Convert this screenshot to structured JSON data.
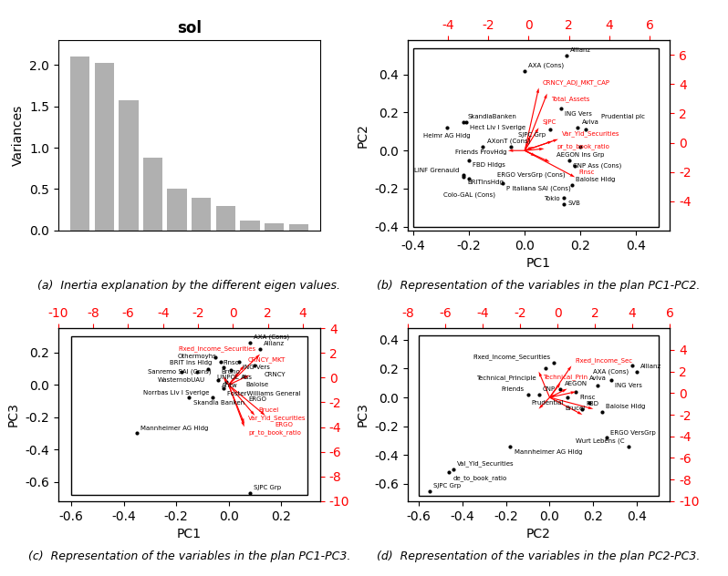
{
  "chart_data": [
    {
      "type": "bar",
      "title": "sol",
      "ylabel": "Variances",
      "caption": "(a)  Inertia explanation by the different eigen values.",
      "values": [
        2.1,
        2.03,
        1.58,
        0.88,
        0.5,
        0.4,
        0.3,
        0.12,
        0.09,
        0.07
      ],
      "color": "#b0b0b0",
      "ylim": [
        0,
        2.3
      ],
      "yticks": [
        0.0,
        0.5,
        1.0,
        1.5,
        2.0
      ],
      "tick_labels": "y"
    },
    {
      "type": "biplot",
      "xlabel": "PC1",
      "ylabel": "PC2",
      "caption": "(b)  Representation of the variables in the plan PC1-PC2.",
      "points": {
        "color": "black",
        "x": [
          0.15,
          0.0,
          0.13,
          -0.22,
          -0.21,
          -0.28,
          0.19,
          0.22,
          0.09,
          0.2,
          -0.15,
          -0.05,
          -0.2,
          0.16,
          0.18,
          -0.22,
          -0.22,
          -0.2,
          -0.08,
          0.17,
          0.14,
          0.14
        ],
        "y": [
          0.5,
          0.42,
          0.22,
          0.15,
          0.15,
          0.12,
          0.12,
          0.11,
          0.11,
          0.02,
          0.02,
          0.02,
          -0.05,
          -0.05,
          -0.08,
          -0.13,
          -0.14,
          -0.15,
          -0.17,
          -0.18,
          -0.25,
          -0.28
        ],
        "labels": [
          "Allianz",
          "AXA (Cons)",
          "ING Vers",
          "SkandiaBanken",
          "Hect Liv I Sverige",
          "Heimr AG Hidg",
          "Aviva",
          "Prudential plc",
          "SJPC Grp",
          "AEGON Ins Grp",
          "AXonT (Cons)",
          "Friends ProvHdg",
          "FBD Hldgs",
          "CNP Ass (Cons)",
          "ERGO VersGrp (Cons)",
          "LINF Grenauld",
          "BRITInsHdg",
          "Colo-GAL (Cons)",
          "P Italiana SAI (Cons)",
          "Baloise Hldg",
          "SVB",
          "Tokio"
        ]
      },
      "vectors": {
        "color": "red",
        "x": [
          0.05,
          0.08,
          0.12,
          0.1,
          0.05,
          0.18,
          0.03,
          -0.06,
          0.02,
          0.07,
          0.04,
          0.09
        ],
        "y": [
          0.33,
          0.3,
          0.06,
          0.05,
          0.12,
          -0.14,
          0.02,
          0.0,
          0.08,
          0.01,
          -0.03,
          -0.06
        ],
        "labels": [
          "CRNCY_ADJ_MKT_CAP",
          "Total_Assets",
          "Var_Yld_Securities",
          "pr_to_book_ratio",
          "SJPC",
          "Finsc",
          null,
          null,
          null,
          null,
          null,
          null
        ]
      },
      "box": {
        "color": "black",
        "x": [
          -0.4,
          0.48
        ],
        "y": [
          -0.4,
          0.54
        ]
      },
      "xlim": [
        -0.42,
        0.52
      ],
      "ylim": [
        -0.42,
        0.58
      ],
      "xticks": [
        -0.4,
        -0.2,
        0.0,
        0.2,
        0.4
      ],
      "yticks": [
        -0.4,
        -0.2,
        0.0,
        0.2,
        0.4
      ],
      "x2lim": [
        -6,
        7
      ],
      "y2lim": [
        -6,
        7
      ],
      "x2ticks": [
        -4,
        -2,
        0,
        2,
        4,
        6
      ],
      "y2ticks": [
        -4,
        -2,
        0,
        2,
        4,
        6
      ]
    },
    {
      "type": "biplot",
      "xlabel": "PC1",
      "ylabel": "PC3",
      "caption": "(c)  Representation of the variables in the plan PC1-PC3.",
      "points": {
        "color": "black",
        "x": [
          0.08,
          0.12,
          -0.05,
          0.04,
          -0.03,
          -0.08,
          -0.18,
          -0.12,
          -0.04,
          -0.02,
          -0.15,
          -0.06,
          -0.35,
          0.08,
          0.1,
          -0.02,
          0.01,
          0.06,
          -0.01
        ],
        "y": [
          0.26,
          0.22,
          0.17,
          0.14,
          0.14,
          0.1,
          0.08,
          0.08,
          0.03,
          -0.02,
          -0.08,
          -0.08,
          -0.3,
          -0.67,
          0.12,
          0.11,
          0.09,
          0.05,
          0.02
        ],
        "labels": [
          "AXA (Cons)",
          "Allianz",
          "BRIT Ins Hldg",
          "ING Vers",
          "Sanremo SAI (Cons)",
          "UNPOL Ass",
          "WasternobUAU",
          "Othermoyhs",
          "Antw",
          "FosterWilliams General",
          "Skandia Banken",
          "Norrbas Liv I Sverige",
          "Mannheimer AG Hldg",
          "SJPC Grp",
          "CRNCY",
          "Baloise",
          "Finsc",
          "Bruno",
          "ERGO"
        ]
      },
      "vectors": {
        "color": "red",
        "x": [
          0.12,
          0.06,
          0.06,
          0.06,
          0.1,
          0.14,
          0.04,
          -0.02,
          0.08,
          0.02
        ],
        "y": [
          0.19,
          0.12,
          -0.24,
          -0.26,
          -0.19,
          -0.19,
          0.08,
          0.05,
          0.06,
          0.01
        ],
        "labels": [
          "Fixed_Income_Securities",
          "CRNCY_MKT",
          "Var_Yld_Securities",
          "pr_to_book_ratio",
          "Brucel",
          "ERGO",
          null,
          null,
          null,
          null
        ]
      },
      "box": {
        "color": "black",
        "x": [
          -0.6,
          0.3
        ],
        "y": [
          -0.68,
          0.3
        ]
      },
      "xlim": [
        -0.65,
        0.35
      ],
      "ylim": [
        -0.72,
        0.35
      ],
      "xticks": [
        -0.6,
        -0.4,
        -0.2,
        0.0,
        0.2
      ],
      "yticks": [
        -0.6,
        -0.4,
        -0.2,
        0.0,
        0.2
      ],
      "x2lim": [
        -10,
        5
      ],
      "y2lim": [
        -10,
        4
      ],
      "x2ticks": [
        -10,
        -8,
        -6,
        -4,
        -2,
        0,
        2,
        4
      ],
      "y2ticks": [
        -10,
        -8,
        -6,
        -4,
        -2,
        0,
        2,
        4
      ]
    },
    {
      "type": "biplot",
      "xlabel": "PC2",
      "ylabel": "PC3",
      "caption": "(d)  Representation of the variables in the plan PC2-PC3.",
      "points": {
        "color": "black",
        "x": [
          0.38,
          0.4,
          0.28,
          0.02,
          0.24,
          0.26,
          0.36,
          -0.18,
          -0.55,
          -0.44,
          -0.46,
          -0.02,
          0.05,
          0.12,
          0.18,
          -0.05,
          0.08,
          -0.1,
          0.22,
          0.15
        ],
        "y": [
          0.22,
          0.18,
          0.12,
          0.24,
          -0.1,
          -0.28,
          -0.34,
          -0.34,
          -0.65,
          -0.5,
          -0.52,
          0.2,
          0.06,
          0.04,
          -0.04,
          0.02,
          0.0,
          0.02,
          0.08,
          -0.08
        ],
        "labels": [
          "AXA (Cons)",
          "Allianz",
          "ING Vers",
          "Fixed_Income_Securities",
          "Baloise Hldg",
          "ERGO VersGrp",
          "Wurt Lebens (C",
          "Mannheimer AG Hldg",
          "SJPC Grp",
          "Val_Yld_Securities",
          "de_to_book_ratio",
          "Technical_Principle",
          "AEGON",
          "Finsc",
          "Brucel",
          "CNP",
          "Prudential",
          "Friends",
          "Aviva",
          "FBD"
        ]
      },
      "vectors": {
        "color": "red",
        "x": [
          0.1,
          -0.05,
          0.08,
          0.12,
          0.03,
          0.15,
          0.2,
          0.05,
          -0.05
        ],
        "y": [
          0.22,
          0.18,
          0.06,
          0.04,
          0.02,
          -0.12,
          -0.08,
          0.1,
          -0.08
        ],
        "labels": [
          "Fixed_Income_Sec",
          "Technical_Prin",
          null,
          null,
          null,
          null,
          null,
          null,
          null
        ]
      },
      "box": {
        "color": "black",
        "x": [
          -0.6,
          0.5
        ],
        "y": [
          -0.68,
          0.43
        ]
      },
      "xlim": [
        -0.65,
        0.55
      ],
      "ylim": [
        -0.72,
        0.48
      ],
      "xticks": [
        -0.6,
        -0.4,
        -0.2,
        0.0,
        0.2,
        0.4
      ],
      "yticks": [
        -0.6,
        -0.4,
        -0.2,
        0.0,
        0.2,
        0.4
      ],
      "x2lim": [
        -8,
        6
      ],
      "y2lim": [
        -10,
        6
      ],
      "x2ticks": [
        -8,
        -6,
        -4,
        -2,
        0,
        2,
        4,
        6
      ],
      "y2ticks": [
        -10,
        -8,
        -6,
        -4,
        -2,
        0,
        2,
        4
      ]
    }
  ]
}
